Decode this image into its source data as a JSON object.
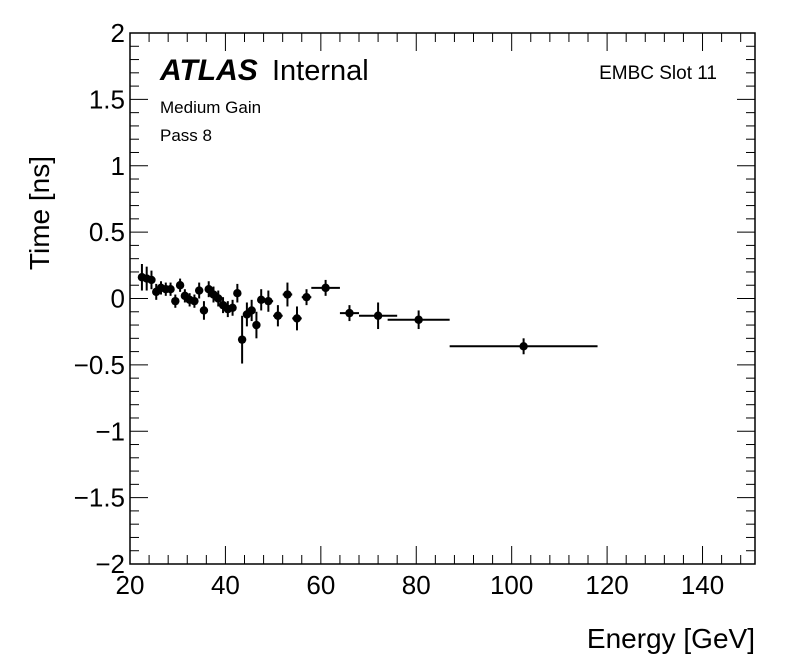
{
  "chart_data": {
    "type": "scatter",
    "xlabel": "Energy [GeV]",
    "ylabel": "Time [ns]",
    "xlim": [
      20,
      151
    ],
    "ylim": [
      -2,
      2
    ],
    "x_ticks": [
      "20",
      "40",
      "60",
      "80",
      "100",
      "120",
      "140"
    ],
    "y_ticks": [
      "2",
      "1.5",
      "1",
      "0.5",
      "0",
      "−0.5",
      "−1",
      "−1.5",
      "−2"
    ],
    "annotations": {
      "atlas": "ATLAS",
      "internal": "Internal",
      "gain": "Medium Gain",
      "pass": "Pass 8",
      "slot": "EMBC Slot 11"
    },
    "points": [
      {
        "x": 22.5,
        "y": 0.16,
        "xerr": 0.5,
        "yerr": 0.1
      },
      {
        "x": 23.5,
        "y": 0.15,
        "xerr": 0.5,
        "yerr": 0.09
      },
      {
        "x": 24.5,
        "y": 0.14,
        "xerr": 0.5,
        "yerr": 0.07
      },
      {
        "x": 25.5,
        "y": 0.05,
        "xerr": 0.5,
        "yerr": 0.06
      },
      {
        "x": 26.5,
        "y": 0.08,
        "xerr": 0.5,
        "yerr": 0.05
      },
      {
        "x": 27.5,
        "y": 0.07,
        "xerr": 0.5,
        "yerr": 0.05
      },
      {
        "x": 28.5,
        "y": 0.07,
        "xerr": 0.5,
        "yerr": 0.05
      },
      {
        "x": 29.5,
        "y": -0.02,
        "xerr": 0.5,
        "yerr": 0.05
      },
      {
        "x": 30.5,
        "y": 0.1,
        "xerr": 0.5,
        "yerr": 0.05
      },
      {
        "x": 31.5,
        "y": 0.02,
        "xerr": 0.5,
        "yerr": 0.05
      },
      {
        "x": 32.5,
        "y": -0.01,
        "xerr": 0.5,
        "yerr": 0.05
      },
      {
        "x": 33.5,
        "y": -0.02,
        "xerr": 0.5,
        "yerr": 0.05
      },
      {
        "x": 34.5,
        "y": 0.06,
        "xerr": 0.5,
        "yerr": 0.06
      },
      {
        "x": 35.5,
        "y": -0.09,
        "xerr": 0.5,
        "yerr": 0.07
      },
      {
        "x": 36.5,
        "y": 0.07,
        "xerr": 0.5,
        "yerr": 0.06
      },
      {
        "x": 37.5,
        "y": 0.03,
        "xerr": 0.5,
        "yerr": 0.06
      },
      {
        "x": 38.5,
        "y": 0.0,
        "xerr": 0.5,
        "yerr": 0.06
      },
      {
        "x": 39.5,
        "y": -0.05,
        "xerr": 0.5,
        "yerr": 0.06
      },
      {
        "x": 40.5,
        "y": -0.08,
        "xerr": 0.5,
        "yerr": 0.06
      },
      {
        "x": 41.5,
        "y": -0.07,
        "xerr": 0.5,
        "yerr": 0.06
      },
      {
        "x": 42.5,
        "y": 0.04,
        "xerr": 0.5,
        "yerr": 0.07
      },
      {
        "x": 43.5,
        "y": -0.31,
        "xerr": 0.5,
        "yerr": 0.18
      },
      {
        "x": 44.5,
        "y": -0.12,
        "xerr": 0.5,
        "yerr": 0.09
      },
      {
        "x": 45.5,
        "y": -0.09,
        "xerr": 0.5,
        "yerr": 0.08
      },
      {
        "x": 46.5,
        "y": -0.2,
        "xerr": 0.5,
        "yerr": 0.1
      },
      {
        "x": 47.5,
        "y": -0.01,
        "xerr": 0.5,
        "yerr": 0.08
      },
      {
        "x": 49.0,
        "y": -0.02,
        "xerr": 1.0,
        "yerr": 0.08
      },
      {
        "x": 51.0,
        "y": -0.13,
        "xerr": 1.0,
        "yerr": 0.08
      },
      {
        "x": 53.0,
        "y": 0.03,
        "xerr": 1.0,
        "yerr": 0.09
      },
      {
        "x": 55.0,
        "y": -0.15,
        "xerr": 1.0,
        "yerr": 0.09
      },
      {
        "x": 57.0,
        "y": 0.01,
        "xerr": 1.0,
        "yerr": 0.06
      },
      {
        "x": 61.0,
        "y": 0.08,
        "xerr": 3.0,
        "yerr": 0.06
      },
      {
        "x": 66.0,
        "y": -0.11,
        "xerr": 2.0,
        "yerr": 0.06
      },
      {
        "x": 72.0,
        "y": -0.13,
        "xerr": 4.0,
        "yerr": 0.1
      },
      {
        "x": 80.5,
        "y": -0.16,
        "xerr": 6.5,
        "yerr": 0.07
      },
      {
        "x": 102.5,
        "y": -0.36,
        "xerr": 15.5,
        "yerr": 0.06
      }
    ]
  }
}
